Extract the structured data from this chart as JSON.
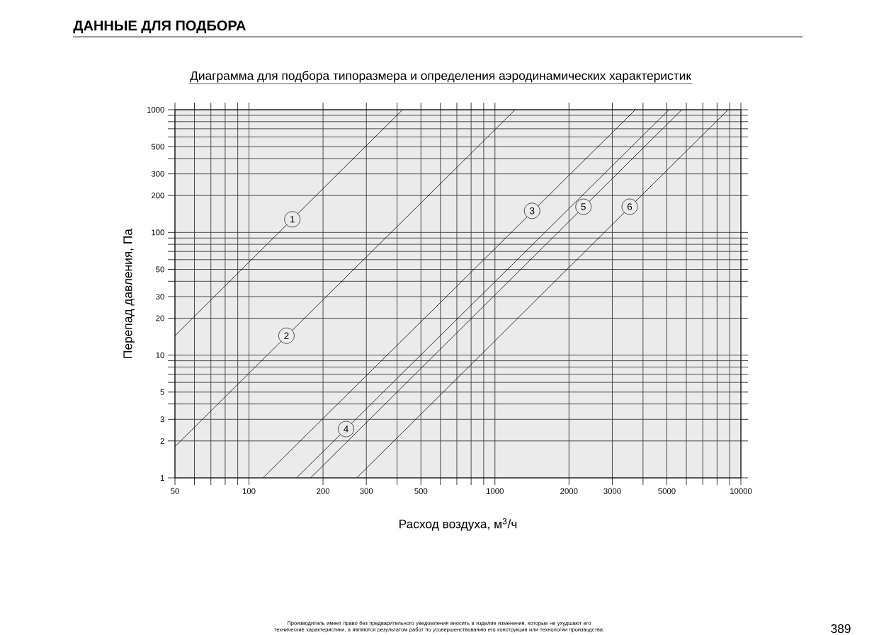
{
  "chart_data": {
    "type": "line",
    "title": "ДАННЫЕ ДЛЯ ПОДБОРА",
    "subtitle": "Диаграмма для подбора типоразмера и определения аэродинамических характеристик",
    "xlabel": "Расход воздуха, м$^{3}$/ч",
    "ylabel": "Перепад давления, Па",
    "log": "xy",
    "grid": true,
    "marker": "none",
    "line_style": "solid",
    "xlim": [
      50,
      10000
    ],
    "ylim": [
      1,
      1000
    ],
    "xticks": [
      50,
      {
        "value": 60,
        "label": null
      },
      {
        "value": 70,
        "label": null
      },
      {
        "value": 80,
        "label": null
      },
      {
        "value": 90,
        "label": null
      },
      100,
      200,
      300,
      {
        "value": 400,
        "label": null
      },
      500,
      {
        "value": 600,
        "label": null
      },
      {
        "value": 700,
        "label": null
      },
      {
        "value": 800,
        "label": null
      },
      {
        "value": 900,
        "label": null
      },
      1000,
      2000,
      3000,
      {
        "value": 4000,
        "label": null
      },
      5000,
      {
        "value": 6000,
        "label": null
      },
      {
        "value": 7000,
        "label": null
      },
      {
        "value": 8000,
        "label": null
      },
      {
        "value": 9000,
        "label": null
      },
      10000
    ],
    "yticks": [
      1,
      2,
      3,
      {
        "value": 4,
        "label": null
      },
      5,
      {
        "value": 6,
        "label": null
      },
      {
        "value": 7,
        "label": null
      },
      {
        "value": 8,
        "label": null
      },
      {
        "value": 9,
        "label": null
      },
      10,
      20,
      30,
      {
        "value": 40,
        "label": null
      },
      50,
      {
        "value": 60,
        "label": null
      },
      {
        "value": 70,
        "label": null
      },
      {
        "value": 80,
        "label": null
      },
      {
        "value": 90,
        "label": null
      },
      100,
      200,
      300,
      {
        "value": 400,
        "label": null
      },
      500,
      {
        "value": 600,
        "label": null
      },
      {
        "value": 700,
        "label": null
      },
      {
        "value": 800,
        "label": null
      },
      {
        "value": 900,
        "label": null
      },
      1000
    ],
    "series": [
      {
        "color": "#000000",
        "x": [
          50,
          421
        ],
        "values": [
          14.4,
          1000
        ]
      },
      {
        "color": "#000000",
        "x": [
          50,
          1207
        ],
        "values": [
          1.8,
          1000
        ]
      },
      {
        "color": "#000000",
        "x": [
          114,
          3725
        ],
        "values": [
          1,
          1000
        ]
      },
      {
        "color": "#000000",
        "x": [
          156,
          5100
        ],
        "values": [
          1,
          1000
        ]
      },
      {
        "color": "#000000",
        "x": [
          178,
          5750
        ],
        "values": [
          1,
          1000
        ]
      },
      {
        "color": "#000000",
        "x": [
          274,
          8870
        ],
        "values": [
          1,
          1000
        ]
      }
    ],
    "annotations": [
      {
        "text": "1",
        "x": 150,
        "y": 128
      },
      {
        "text": "2",
        "x": 142,
        "y": 14.4
      },
      {
        "text": "3",
        "x": 1416,
        "y": 150
      },
      {
        "text": "4",
        "x": 248,
        "y": 2.5
      },
      {
        "text": "5",
        "x": 2290,
        "y": 162
      },
      {
        "text": "6",
        "x": 3530,
        "y": 162
      },
      "Производитель имеет право без предварительного уведомления вносить в изделие изменения, которые не ухудшают его технические характеристики, а являются результатом работ по усовершенствованию его конструкции или технологии производства.",
      "389"
    ]
  }
}
